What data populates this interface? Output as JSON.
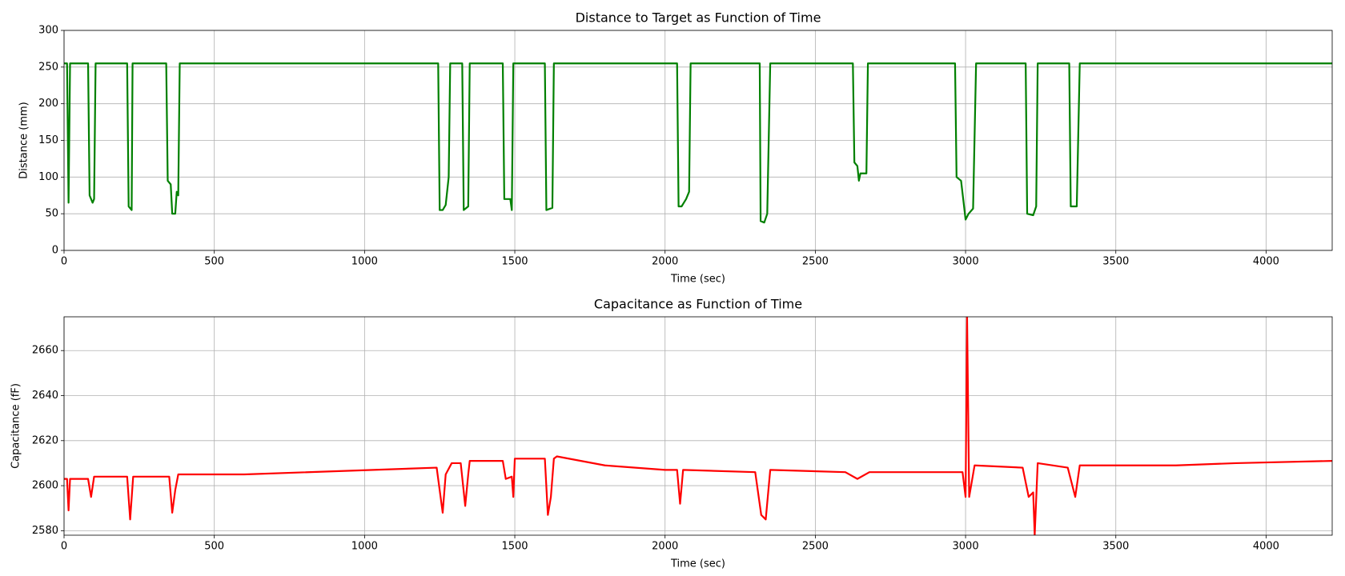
{
  "chart_data": [
    {
      "type": "line",
      "title": "Distance to Target as Function of Time",
      "xlabel": "Time (sec)",
      "ylabel": "Distance (mm)",
      "xlim": [
        0,
        4220
      ],
      "ylim": [
        0,
        300
      ],
      "xticks": [
        0,
        500,
        1000,
        1500,
        2000,
        2500,
        3000,
        3500,
        4000
      ],
      "yticks": [
        0,
        50,
        100,
        150,
        200,
        250,
        300
      ],
      "grid": true,
      "x": [
        0,
        10,
        15,
        20,
        25,
        80,
        85,
        95,
        100,
        105,
        210,
        215,
        225,
        228,
        340,
        345,
        355,
        360,
        370,
        375,
        380,
        385,
        1245,
        1250,
        1260,
        1270,
        1280,
        1285,
        1325,
        1330,
        1345,
        1350,
        1460,
        1465,
        1485,
        1490,
        1495,
        1600,
        1605,
        1625,
        1630,
        2040,
        2045,
        2055,
        2070,
        2080,
        2085,
        2315,
        2318,
        2330,
        2340,
        2350,
        2625,
        2630,
        2640,
        2645,
        2650,
        2670,
        2675,
        2965,
        2970,
        2985,
        2995,
        3000,
        3010,
        3025,
        3035,
        3200,
        3205,
        3225,
        3235,
        3240,
        3345,
        3350,
        3370,
        3380,
        4220
      ],
      "series": [
        {
          "name": "Distance",
          "color": "#008000",
          "values": [
            255,
            255,
            65,
            255,
            255,
            255,
            75,
            65,
            70,
            255,
            255,
            60,
            55,
            255,
            255,
            95,
            90,
            50,
            50,
            80,
            75,
            255,
            255,
            55,
            55,
            62,
            100,
            255,
            255,
            55,
            60,
            255,
            255,
            70,
            70,
            55,
            255,
            255,
            55,
            58,
            255,
            255,
            60,
            60,
            70,
            80,
            255,
            255,
            40,
            38,
            50,
            255,
            255,
            120,
            115,
            95,
            105,
            105,
            255,
            255,
            100,
            95,
            60,
            42,
            50,
            57,
            255,
            255,
            50,
            48,
            60,
            255,
            255,
            60,
            60,
            255,
            255
          ]
        }
      ]
    },
    {
      "type": "line",
      "title": "Capacitance as Function of Time",
      "xlabel": "Time (sec)",
      "ylabel": "Capacitance (fF)",
      "xlim": [
        0,
        4220
      ],
      "ylim": [
        2578,
        2675
      ],
      "xticks": [
        0,
        500,
        1000,
        1500,
        2000,
        2500,
        3000,
        3500,
        4000
      ],
      "yticks": [
        2580,
        2600,
        2620,
        2640,
        2660
      ],
      "grid": true,
      "x": [
        0,
        10,
        15,
        20,
        80,
        90,
        100,
        210,
        220,
        230,
        350,
        360,
        370,
        380,
        600,
        1240,
        1260,
        1270,
        1290,
        1320,
        1335,
        1345,
        1350,
        1460,
        1470,
        1490,
        1495,
        1500,
        1600,
        1610,
        1620,
        1630,
        1640,
        1800,
        2000,
        2040,
        2050,
        2060,
        2300,
        2320,
        2335,
        2350,
        2600,
        2640,
        2680,
        2990,
        3000,
        3005,
        3012,
        3030,
        3190,
        3210,
        3225,
        3230,
        3240,
        3340,
        3365,
        3380,
        3700,
        3900,
        4220
      ],
      "series": [
        {
          "name": "Capacitance",
          "color": "#ff0000",
          "values": [
            2603,
            2603,
            2589,
            2603,
            2603,
            2595,
            2604,
            2604,
            2585,
            2604,
            2604,
            2588,
            2598,
            2605,
            2605,
            2608,
            2588,
            2605,
            2610,
            2610,
            2591,
            2605,
            2611,
            2611,
            2603,
            2604,
            2595,
            2612,
            2612,
            2587,
            2595,
            2612,
            2613,
            2609,
            2607,
            2607,
            2592,
            2607,
            2606,
            2587,
            2585,
            2607,
            2606,
            2603,
            2606,
            2606,
            2595,
            2675,
            2595,
            2609,
            2608,
            2595,
            2597,
            2578,
            2610,
            2608,
            2595,
            2609,
            2609,
            2610,
            2611
          ]
        }
      ]
    }
  ]
}
